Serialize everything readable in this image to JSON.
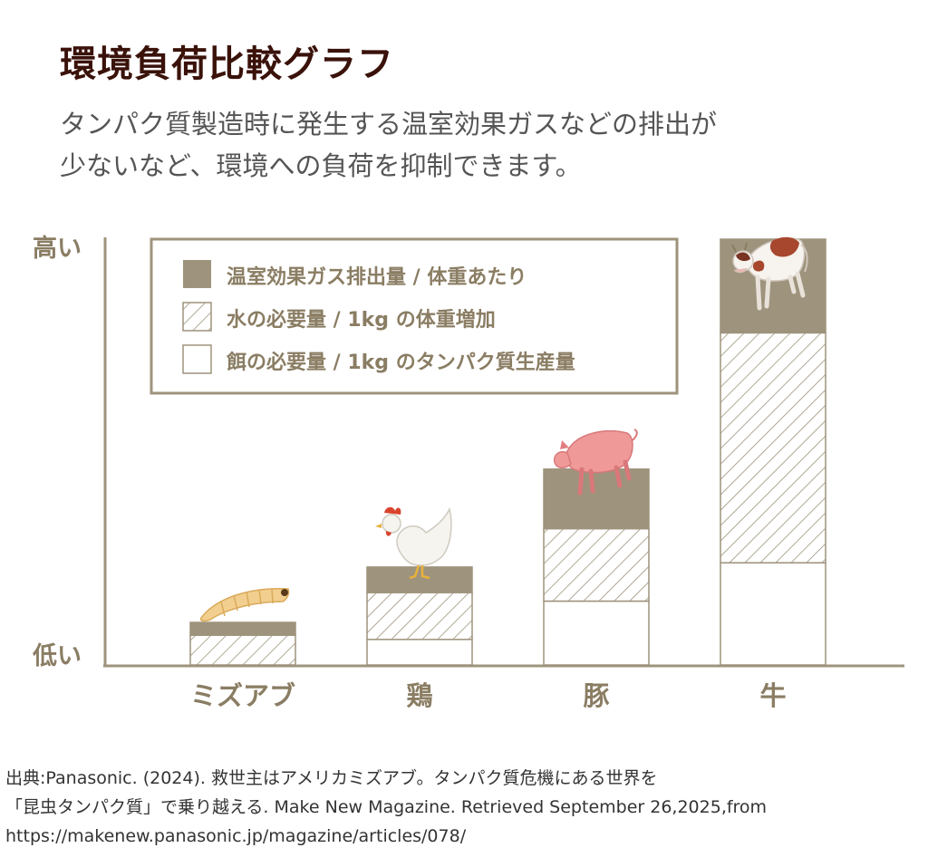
{
  "title": "環境負荷比較グラフ",
  "subtitle_lines": [
    "タンパク質製造時に発生する温室効果ガスなどの排出が",
    "少ないなど、環境への負荷を抑制できます。"
  ],
  "colors": {
    "accent": "#9e937c",
    "title": "#3a120a",
    "subtitle": "#555555",
    "axis": "#9e937c",
    "label": "#8a7d63"
  },
  "icons": [
    "larva-icon",
    "chicken-icon",
    "pig-icon",
    "cow-icon"
  ],
  "chart_data": {
    "type": "bar",
    "stacked": true,
    "ylabel_high": "高い",
    "ylabel_low": "低い",
    "ylim": [
      0,
      100
    ],
    "categories": [
      "ミズアブ",
      "鶏",
      "豚",
      "牛"
    ],
    "series": [
      {
        "name": "餌の必要量 / 1kg のタンパク質生産量",
        "pattern": "solid-white",
        "values": [
          0,
          6,
          15,
          24
        ]
      },
      {
        "name": "水の必要量 / 1kg の体重増加",
        "pattern": "hatched",
        "values": [
          7,
          11,
          17,
          54
        ]
      },
      {
        "name": "温室効果ガス排出量 / 体重あたり",
        "pattern": "solid-dark",
        "values": [
          3,
          6,
          14,
          22
        ]
      }
    ],
    "legend_order": [
      2,
      1,
      0
    ],
    "legend_position": "top-left",
    "grid": false
  },
  "source_lines": [
    "出典:Panasonic. (2024). 救世主はアメリカミズアブ。タンパク質危機にある世界を",
    "「昆虫タンパク質」で乗り越える. Make New Magazine. Retrieved September 26,2025,from",
    "https://makenew.panasonic.jp/magazine/articles/078/"
  ]
}
